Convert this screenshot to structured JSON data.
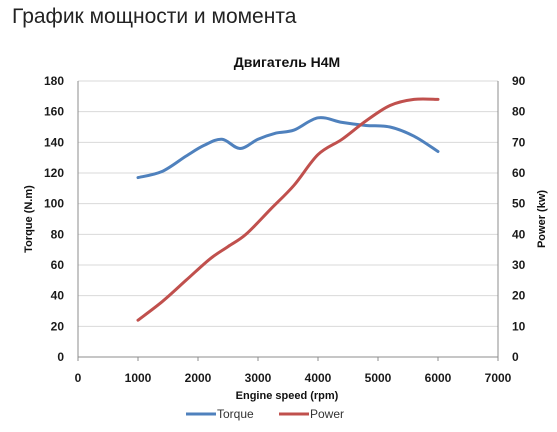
{
  "page_heading": "График мощности и момента",
  "chart_data": {
    "type": "line",
    "title": "Двигатель H4M",
    "xlabel": "Engine speed (rpm)",
    "ylabel": "Torque (N.m)",
    "y2label": "Power (kw)",
    "xlim": [
      0,
      7000
    ],
    "ylim": [
      0,
      180
    ],
    "y2lim": [
      0,
      90
    ],
    "x_ticks": [
      "0",
      "1000",
      "2000",
      "3000",
      "4000",
      "5000",
      "6000",
      "7000"
    ],
    "y_ticks": [
      "0",
      "20",
      "40",
      "60",
      "80",
      "100",
      "120",
      "140",
      "160",
      "180"
    ],
    "y2_ticks": [
      "0",
      "10",
      "20",
      "30",
      "40",
      "50",
      "60",
      "70",
      "80",
      "90"
    ],
    "grid": true,
    "legend_position": "bottom",
    "series": [
      {
        "name": "Torque",
        "axis": "left",
        "color": "#4f81bd",
        "x": [
          1000,
          1400,
          1800,
          2100,
          2400,
          2700,
          3000,
          3300,
          3600,
          4000,
          4400,
          4800,
          5200,
          5600,
          6000
        ],
        "y": [
          117,
          121,
          131,
          138,
          142,
          136,
          142,
          146,
          148,
          156,
          153,
          151,
          150,
          144,
          134
        ]
      },
      {
        "name": "Power",
        "axis": "right",
        "color": "#c0504d",
        "x": [
          1000,
          1400,
          1800,
          2200,
          2500,
          2800,
          3200,
          3600,
          4000,
          4400,
          4800,
          5200,
          5600,
          6000
        ],
        "y": [
          12,
          18,
          25,
          32,
          36,
          40,
          48,
          56,
          66,
          71,
          77,
          82,
          84,
          84
        ]
      }
    ]
  }
}
